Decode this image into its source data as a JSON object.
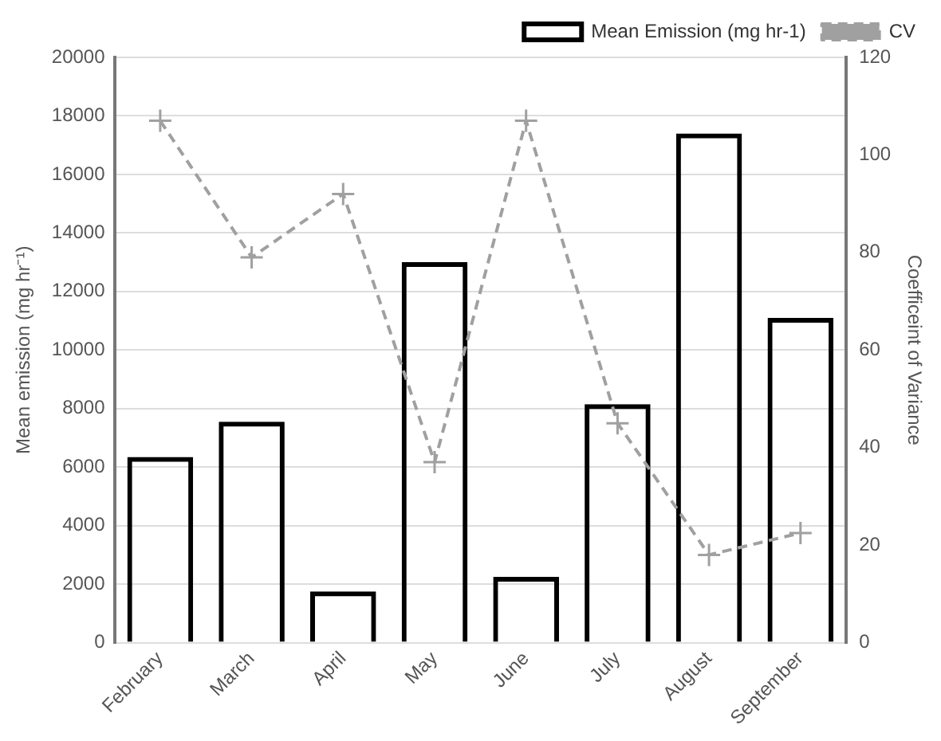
{
  "chart_data": {
    "type": "bar",
    "categories": [
      "February",
      "March",
      "April",
      "May",
      "June",
      "July",
      "August",
      "September"
    ],
    "ylabel": "Mean emission (mg hr⁻¹)",
    "y2label": "Coefficeint of Variance",
    "series": [
      {
        "name": "Mean Emission (mg hr-1)",
        "color": "#000000",
        "values": [
          6350,
          7550,
          1750,
          13000,
          2250,
          8150,
          17400,
          11100
        ]
      },
      {
        "name": "CV",
        "type": "line",
        "axis": "y2",
        "color": "#a0a0a0",
        "marker": "cross",
        "line_style": "dashed",
        "values": [
          107,
          79,
          92,
          37,
          107,
          45,
          18,
          22.5
        ]
      }
    ],
    "ylim": [
      0,
      20000
    ],
    "yticks": [
      0,
      2000,
      4000,
      6000,
      8000,
      10000,
      12000,
      14000,
      16000,
      18000,
      20000
    ],
    "y2lim": [
      0,
      120
    ],
    "y2ticks": [
      0,
      20,
      40,
      60,
      80,
      100,
      120
    ],
    "grid": "y",
    "legend": "top right"
  }
}
